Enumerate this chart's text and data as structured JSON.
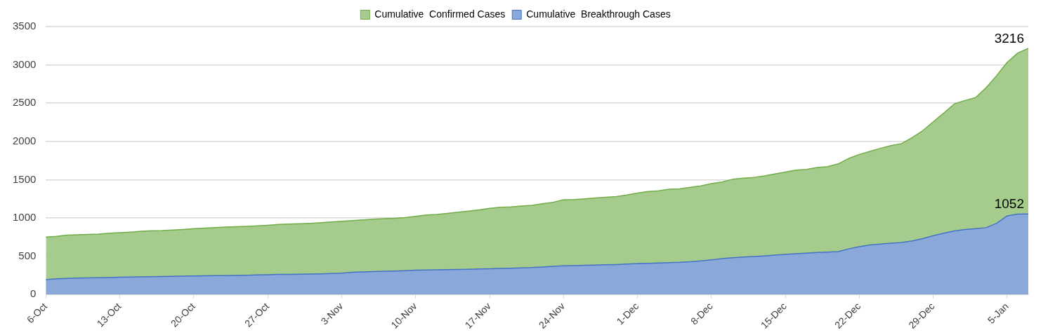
{
  "chart_data": {
    "type": "area",
    "categories": [
      "6-Oct",
      null,
      null,
      null,
      null,
      null,
      null,
      "13-Oct",
      null,
      null,
      null,
      null,
      null,
      null,
      "20-Oct",
      null,
      null,
      null,
      null,
      null,
      null,
      "27-Oct",
      null,
      null,
      null,
      null,
      null,
      null,
      "3-Nov",
      null,
      null,
      null,
      null,
      null,
      null,
      "10-Nov",
      null,
      null,
      null,
      null,
      null,
      null,
      "17-Nov",
      null,
      null,
      null,
      null,
      null,
      null,
      "24-Nov",
      null,
      null,
      null,
      null,
      null,
      null,
      "1-Dec",
      null,
      null,
      null,
      null,
      null,
      null,
      "8-Dec",
      null,
      null,
      null,
      null,
      null,
      null,
      "15-Dec",
      null,
      null,
      null,
      null,
      null,
      null,
      "22-Dec",
      null,
      null,
      null,
      null,
      null,
      null,
      "29-Dec",
      null,
      null,
      null,
      null,
      null,
      null,
      "5-Jan",
      null,
      null
    ],
    "series": [
      {
        "name": "Cumulative  Confirmed Cases",
        "color": "#70ad47",
        "values": [
          750,
          760,
          775,
          780,
          785,
          790,
          800,
          808,
          815,
          825,
          832,
          835,
          842,
          850,
          860,
          868,
          875,
          880,
          885,
          890,
          898,
          905,
          915,
          920,
          925,
          930,
          938,
          948,
          957,
          965,
          975,
          985,
          990,
          995,
          1005,
          1021,
          1040,
          1045,
          1060,
          1075,
          1090,
          1105,
          1125,
          1140,
          1145,
          1155,
          1165,
          1185,
          1205,
          1238,
          1240,
          1250,
          1260,
          1270,
          1280,
          1300,
          1326,
          1345,
          1355,
          1375,
          1380,
          1400,
          1420,
          1448,
          1470,
          1505,
          1520,
          1530,
          1550,
          1575,
          1600,
          1625,
          1635,
          1660,
          1670,
          1707,
          1778,
          1830,
          1870,
          1910,
          1945,
          1972,
          2050,
          2140,
          2257,
          2370,
          2490,
          2535,
          2573,
          2700,
          2860,
          3033,
          3155,
          3216
        ],
        "value_labels": [
          null,
          null,
          null,
          null,
          null,
          null,
          null,
          null,
          null,
          null,
          null,
          null,
          null,
          null,
          null,
          null,
          null,
          null,
          null,
          null,
          null,
          null,
          null,
          null,
          null,
          null,
          null,
          null,
          null,
          null,
          null,
          null,
          null,
          null,
          null,
          null,
          null,
          null,
          null,
          null,
          null,
          null,
          null,
          null,
          null,
          null,
          null,
          null,
          null,
          null,
          null,
          null,
          null,
          null,
          null,
          null,
          null,
          null,
          null,
          null,
          null,
          null,
          null,
          null,
          null,
          null,
          null,
          null,
          null,
          null,
          null,
          null,
          null,
          null,
          null,
          null,
          null,
          null,
          null,
          null,
          null,
          null,
          null,
          null,
          null,
          null,
          null,
          null,
          null,
          null,
          null,
          null,
          null,
          "3216"
        ]
      },
      {
        "name": "Cumulative  Breakthrough Cases",
        "color": "#4472c4",
        "values": [
          195,
          205,
          210,
          215,
          218,
          220,
          222,
          226,
          228,
          230,
          232,
          235,
          238,
          240,
          242,
          244,
          246,
          248,
          250,
          252,
          255,
          259,
          262,
          264,
          266,
          268,
          270,
          274,
          278,
          290,
          296,
          300,
          303,
          306,
          310,
          317,
          320,
          322,
          324,
          327,
          330,
          333,
          336,
          340,
          344,
          348,
          352,
          360,
          368,
          375,
          378,
          382,
          385,
          388,
          392,
          398,
          404,
          408,
          412,
          416,
          420,
          428,
          440,
          453,
          468,
          480,
          490,
          496,
          504,
          514,
          524,
          532,
          540,
          548,
          554,
          560,
          596,
          624,
          648,
          660,
          670,
          679,
          700,
          730,
          769,
          800,
          830,
          850,
          860,
          873,
          930,
          1028,
          1050,
          1052
        ],
        "value_labels": [
          null,
          null,
          null,
          null,
          null,
          null,
          null,
          null,
          null,
          null,
          null,
          null,
          null,
          null,
          null,
          null,
          null,
          null,
          null,
          null,
          null,
          null,
          null,
          null,
          null,
          null,
          null,
          null,
          null,
          null,
          null,
          null,
          null,
          null,
          null,
          null,
          null,
          null,
          null,
          null,
          null,
          null,
          null,
          null,
          null,
          null,
          null,
          null,
          null,
          null,
          null,
          null,
          null,
          null,
          null,
          null,
          null,
          null,
          null,
          null,
          null,
          null,
          null,
          null,
          null,
          null,
          null,
          null,
          null,
          null,
          null,
          null,
          null,
          null,
          null,
          null,
          null,
          null,
          null,
          null,
          null,
          null,
          null,
          null,
          null,
          null,
          null,
          null,
          null,
          null,
          null,
          null,
          null,
          "1052"
        ]
      }
    ],
    "ylim": [
      0,
      3500
    ],
    "yticks": [
      0,
      500,
      1000,
      1500,
      2000,
      2500,
      3000,
      3500
    ],
    "grid": "y",
    "legend": "top",
    "marker": "none"
  }
}
